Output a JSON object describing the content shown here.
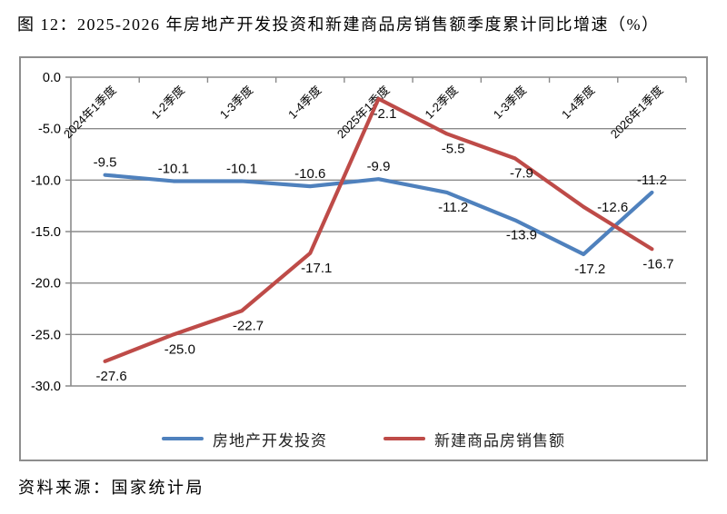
{
  "source_note": "资料来源：国家统计局",
  "chart_data": {
    "type": "line",
    "title": "图 12：2025-2026 年房地产开发投资和新建商品房销售额季度累计同比增速（%）",
    "xlabel": "",
    "ylabel": "",
    "ylim": [
      -30,
      0
    ],
    "yticks": [
      0,
      -5,
      -10,
      -15,
      -20,
      -25,
      -30
    ],
    "grid": true,
    "legend_position": "bottom",
    "axis_color": "#8a8a8a",
    "categories": [
      "2024年1季度",
      "1-2季度",
      "1-3季度",
      "1-4季度",
      "2025年1季度",
      "1-2季度",
      "1-3季度",
      "1-4季度",
      "2026年1季度"
    ],
    "series": [
      {
        "name": "房地产开发投资",
        "color": "#4F81BD",
        "values": [
          -9.5,
          -10.1,
          -10.1,
          -10.6,
          -9.9,
          -11.2,
          -13.9,
          -17.2,
          -11.2
        ],
        "label_side": [
          "above",
          "above",
          "above",
          "above",
          "above",
          "below",
          "below",
          "below",
          "above"
        ]
      },
      {
        "name": "新建商品房销售额",
        "color": "#BE4B48",
        "values": [
          -27.6,
          -25.0,
          -22.7,
          -17.1,
          -2.1,
          -5.5,
          -7.9,
          -12.6,
          -16.7
        ],
        "label_side": [
          "below",
          "below",
          "below",
          "below",
          "below",
          "below",
          "below",
          "right",
          "below"
        ]
      }
    ]
  }
}
